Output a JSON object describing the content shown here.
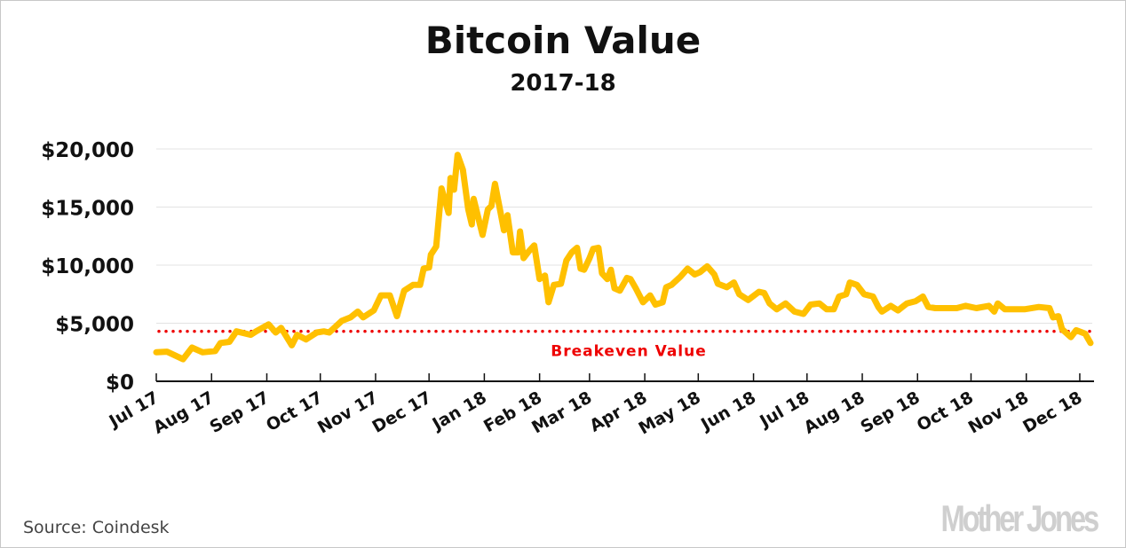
{
  "chart_data": {
    "type": "line",
    "title": "Bitcoin Value",
    "subtitle": "2017-18",
    "xlabel": "",
    "ylabel": "",
    "x_unit": "days since Jul 1 2017",
    "xlim": [
      0,
      525
    ],
    "ylim": [
      0,
      20000
    ],
    "grid": true,
    "y_ticks": [
      {
        "value": 0,
        "label": "$0"
      },
      {
        "value": 5000,
        "label": "$5,000"
      },
      {
        "value": 10000,
        "label": "$10,000"
      },
      {
        "value": 15000,
        "label": "$15,000"
      },
      {
        "value": 20000,
        "label": "$20,000"
      }
    ],
    "x_ticks": [
      {
        "value": 0,
        "label": "Jul 17"
      },
      {
        "value": 31,
        "label": "Aug 17"
      },
      {
        "value": 62,
        "label": "Sep 17"
      },
      {
        "value": 92,
        "label": "Oct 17"
      },
      {
        "value": 123,
        "label": "Nov 17"
      },
      {
        "value": 153,
        "label": "Dec 17"
      },
      {
        "value": 184,
        "label": "Jan 18"
      },
      {
        "value": 215,
        "label": "Feb 18"
      },
      {
        "value": 243,
        "label": "Mar 18"
      },
      {
        "value": 274,
        "label": "Apr 18"
      },
      {
        "value": 304,
        "label": "May 18"
      },
      {
        "value": 335,
        "label": "Jun 18"
      },
      {
        "value": 365,
        "label": "Jul 18"
      },
      {
        "value": 396,
        "label": "Aug 18"
      },
      {
        "value": 427,
        "label": "Sep 18"
      },
      {
        "value": 457,
        "label": "Oct 18"
      },
      {
        "value": 488,
        "label": "Nov 18"
      },
      {
        "value": 518,
        "label": "Dec 18"
      }
    ],
    "series": [
      {
        "name": "Bitcoin Value",
        "color": "#FFC000",
        "x": [
          0,
          6,
          15,
          20,
          26,
          33,
          36,
          41,
          45,
          53,
          56,
          63,
          67,
          70,
          76,
          79,
          84,
          90,
          94,
          97,
          104,
          109,
          113,
          116,
          122,
          126,
          131,
          135,
          139,
          144,
          148,
          150,
          153,
          154,
          157,
          160,
          164,
          165,
          167,
          169,
          172,
          175,
          177,
          178,
          183,
          186,
          188,
          190,
          193,
          195,
          197,
          200,
          203,
          204,
          206,
          209,
          212,
          215,
          218,
          220,
          223,
          227,
          230,
          233,
          236,
          238,
          240,
          243,
          245,
          248,
          250,
          253,
          255,
          257,
          260,
          264,
          266,
          269,
          273,
          277,
          280,
          284,
          286,
          289,
          294,
          298,
          302,
          305,
          309,
          313,
          315,
          320,
          324,
          327,
          332,
          338,
          341,
          344,
          348,
          353,
          358,
          363,
          367,
          372,
          376,
          380,
          383,
          387,
          389,
          393,
          397,
          402,
          405,
          407,
          412,
          416,
          421,
          426,
          430,
          433,
          437,
          449,
          454,
          460,
          467,
          470,
          472,
          476,
          487,
          495,
          501,
          503,
          506,
          508,
          513,
          516,
          521,
          524
        ],
        "y": [
          2500,
          2550,
          1900,
          2900,
          2500,
          2600,
          3300,
          3400,
          4300,
          4000,
          4300,
          4900,
          4200,
          4600,
          3100,
          4000,
          3600,
          4200,
          4300,
          4200,
          5200,
          5500,
          6000,
          5500,
          6100,
          7400,
          7400,
          5600,
          7800,
          8300,
          8300,
          9700,
          9800,
          10900,
          11600,
          16600,
          14500,
          17500,
          16500,
          19500,
          18200,
          14800,
          13500,
          15700,
          12600,
          14800,
          15100,
          17000,
          14600,
          13000,
          14300,
          11100,
          11100,
          12900,
          10600,
          11200,
          11700,
          8800,
          9100,
          6800,
          8300,
          8400,
          10400,
          11100,
          11500,
          9700,
          9600,
          10600,
          11400,
          11500,
          9300,
          8800,
          9600,
          8000,
          7800,
          8900,
          8800,
          8000,
          6800,
          7400,
          6600,
          6800,
          8100,
          8300,
          9000,
          9700,
          9200,
          9400,
          9900,
          9200,
          8400,
          8100,
          8500,
          7500,
          7000,
          7700,
          7600,
          6700,
          6200,
          6700,
          6000,
          5800,
          6600,
          6700,
          6200,
          6200,
          7300,
          7500,
          8500,
          8300,
          7500,
          7300,
          6400,
          6000,
          6500,
          6100,
          6700,
          6900,
          7300,
          6400,
          6300,
          6300,
          6500,
          6300,
          6500,
          6000,
          6700,
          6200,
          6200,
          6400,
          6300,
          5500,
          5600,
          4500,
          3800,
          4400,
          4100,
          3300
        ]
      }
    ],
    "reference_line": {
      "value": 4300,
      "label": "Breakeven Value",
      "color": "#ee0000"
    },
    "source": "Source:  Coindesk",
    "logo": "Mother Jones"
  }
}
